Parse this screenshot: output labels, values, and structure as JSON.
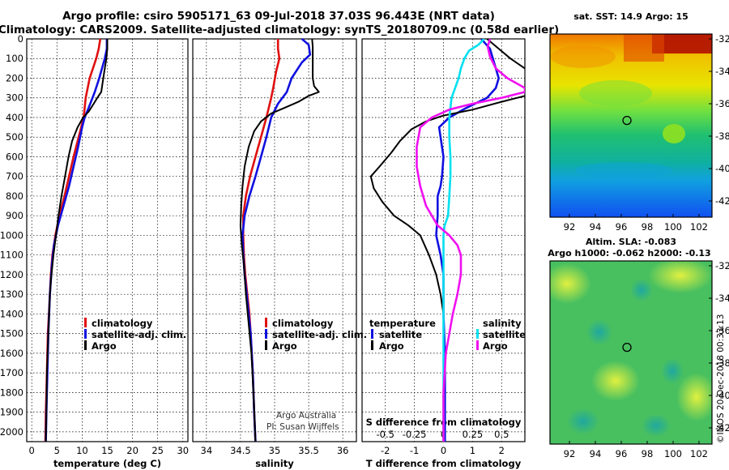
{
  "header": {
    "line1": "Argo profile: csiro 5905171_63 09-Jul-2018 37.03S 96.443E (NRT data)",
    "line2": "Climatology: CARS2009. Satellite-adjusted climatology: synTS_20180709.nc (0.58d earlier)"
  },
  "colors": {
    "climatology": "#e01010",
    "satellite": "#1010e0",
    "argo": "#000000",
    "satellite_s": "#00e0f0",
    "argo_s": "#f010f0"
  },
  "credit": {
    "line1": "Argo Australia",
    "line2": "PI: Susan Wijffels"
  },
  "watermark": "©IMOS 20-Dec-2018 00:33:13",
  "chart_data": [
    {
      "id": "temperature",
      "type": "line",
      "xlabel": "temperature (deg C)",
      "xlim": [
        -1,
        31
      ],
      "ylim": [
        0,
        2050
      ],
      "xticks": [
        0,
        5,
        10,
        15,
        20,
        25,
        30
      ],
      "yticks": [
        0,
        100,
        200,
        300,
        400,
        500,
        600,
        700,
        800,
        900,
        1000,
        1100,
        1200,
        1300,
        1400,
        1500,
        1600,
        1700,
        1800,
        1900,
        2000
      ],
      "legend": [
        "climatology",
        "satellite-adj. clim.",
        "Argo"
      ],
      "series": [
        {
          "name": "climatology",
          "color": "#e01010",
          "points": [
            [
              13.6,
              0
            ],
            [
              13.3,
              50
            ],
            [
              12.8,
              100
            ],
            [
              11.5,
              200
            ],
            [
              10.7,
              300
            ],
            [
              10.3,
              400
            ],
            [
              9.3,
              500
            ],
            [
              8.3,
              600
            ],
            [
              7.4,
              700
            ],
            [
              6.5,
              800
            ],
            [
              5.5,
              900
            ],
            [
              4.7,
              1000
            ],
            [
              4.1,
              1100
            ],
            [
              3.8,
              1200
            ],
            [
              3.6,
              1300
            ],
            [
              3.4,
              1400
            ],
            [
              3.2,
              1500
            ],
            [
              3.1,
              1600
            ],
            [
              3.0,
              1700
            ],
            [
              2.9,
              1800
            ],
            [
              2.8,
              1900
            ],
            [
              2.7,
              2050
            ]
          ]
        },
        {
          "name": "satellite-adj. clim.",
          "color": "#1010e0",
          "points": [
            [
              14.9,
              0
            ],
            [
              14.9,
              50
            ],
            [
              14.5,
              100
            ],
            [
              13.4,
              200
            ],
            [
              12.5,
              270
            ],
            [
              11.3,
              350
            ],
            [
              10.5,
              400
            ],
            [
              10.0,
              450
            ],
            [
              9.2,
              550
            ],
            [
              8.3,
              650
            ],
            [
              7.4,
              750
            ],
            [
              6.3,
              850
            ],
            [
              5.2,
              950
            ],
            [
              4.4,
              1050
            ],
            [
              4.0,
              1150
            ],
            [
              3.6,
              1300
            ],
            [
              3.3,
              1500
            ],
            [
              3.1,
              1700
            ],
            [
              2.9,
              1900
            ],
            [
              2.8,
              2050
            ]
          ]
        },
        {
          "name": "Argo",
          "color": "#000000",
          "points": [
            [
              15.0,
              0
            ],
            [
              15.0,
              50
            ],
            [
              14.8,
              100
            ],
            [
              14.2,
              200
            ],
            [
              13.8,
              270
            ],
            [
              13.0,
              300
            ],
            [
              12.3,
              330
            ],
            [
              11.3,
              370
            ],
            [
              10.2,
              400
            ],
            [
              9.1,
              450
            ],
            [
              8.0,
              520
            ],
            [
              7.3,
              600
            ],
            [
              6.6,
              700
            ],
            [
              5.9,
              800
            ],
            [
              5.3,
              900
            ],
            [
              4.8,
              1000
            ],
            [
              4.3,
              1100
            ],
            [
              3.9,
              1200
            ],
            [
              3.6,
              1300
            ],
            [
              3.3,
              1500
            ],
            [
              3.0,
              1700
            ],
            [
              2.9,
              1900
            ],
            [
              2.8,
              2050
            ]
          ]
        }
      ]
    },
    {
      "id": "salinity",
      "type": "line",
      "xlabel": "salinity",
      "xlim": [
        33.8,
        36.2
      ],
      "ylim": [
        0,
        2050
      ],
      "xticks": [
        34,
        34.5,
        35,
        35.5,
        36
      ],
      "xtick_labels": [
        "34",
        "34.5",
        "35",
        "35.5",
        "36"
      ],
      "legend": [
        "climatology",
        "satellite-adj. clim.",
        "Argo"
      ],
      "series": [
        {
          "name": "climatology",
          "color": "#e01010",
          "points": [
            [
              35.05,
              0
            ],
            [
              35.05,
              50
            ],
            [
              35.07,
              100
            ],
            [
              35.02,
              170
            ],
            [
              34.98,
              250
            ],
            [
              34.95,
              300
            ],
            [
              34.88,
              400
            ],
            [
              34.8,
              500
            ],
            [
              34.72,
              600
            ],
            [
              34.64,
              700
            ],
            [
              34.58,
              800
            ],
            [
              34.54,
              900
            ],
            [
              34.54,
              1000
            ],
            [
              34.55,
              1100
            ],
            [
              34.57,
              1200
            ],
            [
              34.6,
              1300
            ],
            [
              34.63,
              1400
            ],
            [
              34.65,
              1500
            ],
            [
              34.68,
              1700
            ],
            [
              34.7,
              1900
            ],
            [
              34.72,
              2050
            ]
          ]
        },
        {
          "name": "satellite-adj. clim.",
          "color": "#1010e0",
          "points": [
            [
              35.4,
              0
            ],
            [
              35.5,
              30
            ],
            [
              35.52,
              80
            ],
            [
              35.4,
              120
            ],
            [
              35.25,
              200
            ],
            [
              35.18,
              270
            ],
            [
              35.05,
              330
            ],
            [
              34.95,
              400
            ],
            [
              34.88,
              500
            ],
            [
              34.8,
              600
            ],
            [
              34.72,
              700
            ],
            [
              34.63,
              800
            ],
            [
              34.56,
              900
            ],
            [
              34.53,
              1000
            ],
            [
              34.54,
              1100
            ],
            [
              34.56,
              1200
            ],
            [
              34.59,
              1300
            ],
            [
              34.62,
              1400
            ],
            [
              34.65,
              1500
            ],
            [
              34.68,
              1700
            ],
            [
              34.7,
              1900
            ],
            [
              34.72,
              2050
            ]
          ]
        },
        {
          "name": "Argo",
          "color": "#000000",
          "points": [
            [
              35.55,
              0
            ],
            [
              35.56,
              40
            ],
            [
              35.56,
              100
            ],
            [
              35.56,
              200
            ],
            [
              35.58,
              240
            ],
            [
              35.65,
              270
            ],
            [
              35.5,
              290
            ],
            [
              35.35,
              320
            ],
            [
              35.15,
              350
            ],
            [
              34.95,
              380
            ],
            [
              34.8,
              420
            ],
            [
              34.7,
              470
            ],
            [
              34.62,
              550
            ],
            [
              34.56,
              650
            ],
            [
              34.53,
              750
            ],
            [
              34.51,
              850
            ],
            [
              34.5,
              950
            ],
            [
              34.52,
              1050
            ],
            [
              34.55,
              1150
            ],
            [
              34.58,
              1300
            ],
            [
              34.62,
              1450
            ],
            [
              34.66,
              1600
            ],
            [
              34.69,
              1800
            ],
            [
              34.72,
              2050
            ]
          ]
        }
      ]
    },
    {
      "id": "differences",
      "type": "line",
      "xlabel": "T difference from climatology",
      "x2label": "S difference from climatology",
      "xlim": [
        -2.8,
        2.8
      ],
      "s_xlim": [
        -0.7,
        0.7
      ],
      "ylim": [
        0,
        2050
      ],
      "xticks": [
        -2,
        -1,
        0,
        1,
        2
      ],
      "s_xticks": [
        -0.5,
        -0.25,
        0,
        0.25,
        0.5
      ],
      "s_xtick_labels": [
        "-0.5",
        "-0.25",
        "0",
        "0.25",
        "0.5"
      ],
      "legend_temperature_title": "temperature",
      "legend_salinity_title": "salinity",
      "legend_left": [
        "satellite",
        "Argo"
      ],
      "legend_right": [
        "satellite",
        "Argo"
      ],
      "series": [
        {
          "name": "T satellite",
          "color": "#1010e0",
          "points": [
            [
              1.3,
              0
            ],
            [
              1.6,
              50
            ],
            [
              1.7,
              100
            ],
            [
              1.9,
              200
            ],
            [
              1.8,
              250
            ],
            [
              1.5,
              300
            ],
            [
              0.8,
              350
            ],
            [
              0.2,
              400
            ],
            [
              -0.15,
              450
            ],
            [
              -0.1,
              500
            ],
            [
              0.0,
              600
            ],
            [
              -0.05,
              700
            ],
            [
              -0.1,
              750
            ],
            [
              -0.2,
              800
            ],
            [
              -0.2,
              900
            ],
            [
              -0.25,
              1000
            ],
            [
              -0.1,
              1100
            ],
            [
              0.0,
              1200
            ],
            [
              0.0,
              1400
            ],
            [
              0.05,
              1600
            ],
            [
              0.05,
              2050
            ]
          ]
        },
        {
          "name": "T Argo",
          "color": "#000000",
          "points": [
            [
              1.5,
              0
            ],
            [
              1.9,
              50
            ],
            [
              2.3,
              100
            ],
            [
              2.8,
              150
            ],
            [
              3.0,
              200
            ],
            [
              3.0,
              250
            ],
            [
              2.8,
              290
            ],
            [
              2.0,
              320
            ],
            [
              1.0,
              360
            ],
            [
              0.0,
              390
            ],
            [
              -0.6,
              420
            ],
            [
              -1.1,
              460
            ],
            [
              -1.5,
              520
            ],
            [
              -1.8,
              580
            ],
            [
              -2.2,
              650
            ],
            [
              -2.5,
              700
            ],
            [
              -2.4,
              760
            ],
            [
              -2.1,
              830
            ],
            [
              -1.7,
              900
            ],
            [
              -1.2,
              950
            ],
            [
              -0.8,
              1000
            ],
            [
              -0.5,
              1100
            ],
            [
              -0.25,
              1200
            ],
            [
              -0.1,
              1300
            ],
            [
              0.0,
              1400
            ],
            [
              0.0,
              1600
            ],
            [
              0.0,
              2050
            ]
          ]
        },
        {
          "name": "S satellite",
          "color": "#00e0f0",
          "points": [
            [
              0.35,
              0
            ],
            [
              0.3,
              30
            ],
            [
              0.22,
              60
            ],
            [
              0.18,
              100
            ],
            [
              0.15,
              150
            ],
            [
              0.13,
              200
            ],
            [
              0.1,
              250
            ],
            [
              0.07,
              300
            ],
            [
              0.05,
              400
            ],
            [
              0.05,
              500
            ],
            [
              0.06,
              600
            ],
            [
              0.06,
              700
            ],
            [
              0.05,
              800
            ],
            [
              0.04,
              900
            ],
            [
              0.01,
              950
            ],
            [
              0.0,
              1000
            ],
            [
              0.0,
              1200
            ],
            [
              0.0,
              1500
            ],
            [
              0.0,
              1800
            ],
            [
              0.0,
              2050
            ]
          ]
        },
        {
          "name": "S Argo",
          "color": "#f010f0",
          "points": [
            [
              0.4,
              0
            ],
            [
              0.38,
              40
            ],
            [
              0.4,
              90
            ],
            [
              0.45,
              150
            ],
            [
              0.55,
              200
            ],
            [
              0.7,
              250
            ],
            [
              0.7,
              270
            ],
            [
              0.5,
              300
            ],
            [
              0.25,
              330
            ],
            [
              0.05,
              360
            ],
            [
              -0.1,
              400
            ],
            [
              -0.2,
              450
            ],
            [
              -0.23,
              550
            ],
            [
              -0.23,
              650
            ],
            [
              -0.2,
              750
            ],
            [
              -0.15,
              850
            ],
            [
              -0.05,
              950
            ],
            [
              0.05,
              1000
            ],
            [
              0.12,
              1050
            ],
            [
              0.15,
              1100
            ],
            [
              0.15,
              1200
            ],
            [
              0.12,
              1300
            ],
            [
              0.08,
              1400
            ],
            [
              0.05,
              1500
            ],
            [
              0.02,
              1600
            ],
            [
              0.0,
              1800
            ],
            [
              0.0,
              2050
            ]
          ]
        }
      ]
    },
    {
      "id": "sst_map",
      "type": "heatmap",
      "title": "sat. SST: 14.9 Argo: 15",
      "xticks": [
        92,
        94,
        96,
        98,
        100,
        102
      ],
      "yticks": [
        -32,
        -34,
        -36,
        -38,
        -40,
        -42
      ],
      "xlim": [
        90.5,
        103
      ],
      "ylim": [
        -43,
        -31.7
      ],
      "marker": [
        96.44,
        -37.03
      ]
    },
    {
      "id": "sla_map",
      "type": "heatmap",
      "title": "Altim. SLA: -0.083",
      "subtitle": "Argo h1000: -0.062 h2000: -0.13",
      "xticks": [
        92,
        94,
        96,
        98,
        100,
        102
      ],
      "yticks": [
        -32,
        -34,
        -36,
        -38,
        -40,
        -42
      ],
      "xlim": [
        90.5,
        103
      ],
      "ylim": [
        -43,
        -31.7
      ],
      "marker": [
        96.44,
        -37.03
      ]
    }
  ]
}
